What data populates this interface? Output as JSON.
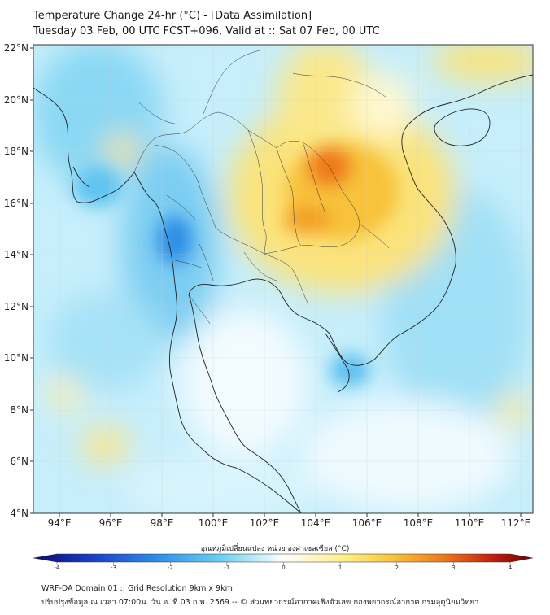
{
  "header": {
    "title": "Temperature Change 24-hr (°C) - [Data Assimilation]",
    "subtitle": "Tuesday 03 Feb, 00 UTC FCST+096, Valid at :: Sat 07 Feb, 00 UTC"
  },
  "map": {
    "lat_labels": [
      "22°N",
      "20°N",
      "18°N",
      "16°N",
      "14°N",
      "12°N",
      "10°N",
      "8°N",
      "6°N",
      "4°N"
    ],
    "lon_labels": [
      "94°E",
      "96°E",
      "98°E",
      "100°E",
      "102°E",
      "104°E",
      "106°E",
      "108°E",
      "110°E",
      "112°E"
    ],
    "lat_range": [
      4,
      22
    ],
    "lon_range": [
      93,
      112.5
    ]
  },
  "colorbar": {
    "title": "อุณหภูมิเปลี่ยนแปลง หน่วย องศาเซลเซียส (°C)",
    "ticks": [
      "-4",
      "-3",
      "-2",
      "-1",
      "0",
      "1",
      "2",
      "3",
      "4"
    ],
    "range": [
      -4,
      4
    ]
  },
  "footer": {
    "line1": "WRF-DA Domain 01 :: Grid Resolution 9km x 9km",
    "line2": "ปรับปรุงข้อมูล ณ เวลา 07:00น. วัน อ. ที่ 03 ก.พ. 2569 -- © ส่วนพยากรณ์อากาศเชิงตัวเลข กองพยากรณ์อากาศ กรมอุตุนิยมวิทยา"
  },
  "colors": {
    "cold_extreme": "#0a0a6e",
    "cold": "#3aa0e8",
    "cool": "#a8e4f8",
    "neutral": "#ffffff",
    "warm": "#fbe37a",
    "hot": "#f29a20",
    "hot_extreme": "#6a0000"
  }
}
